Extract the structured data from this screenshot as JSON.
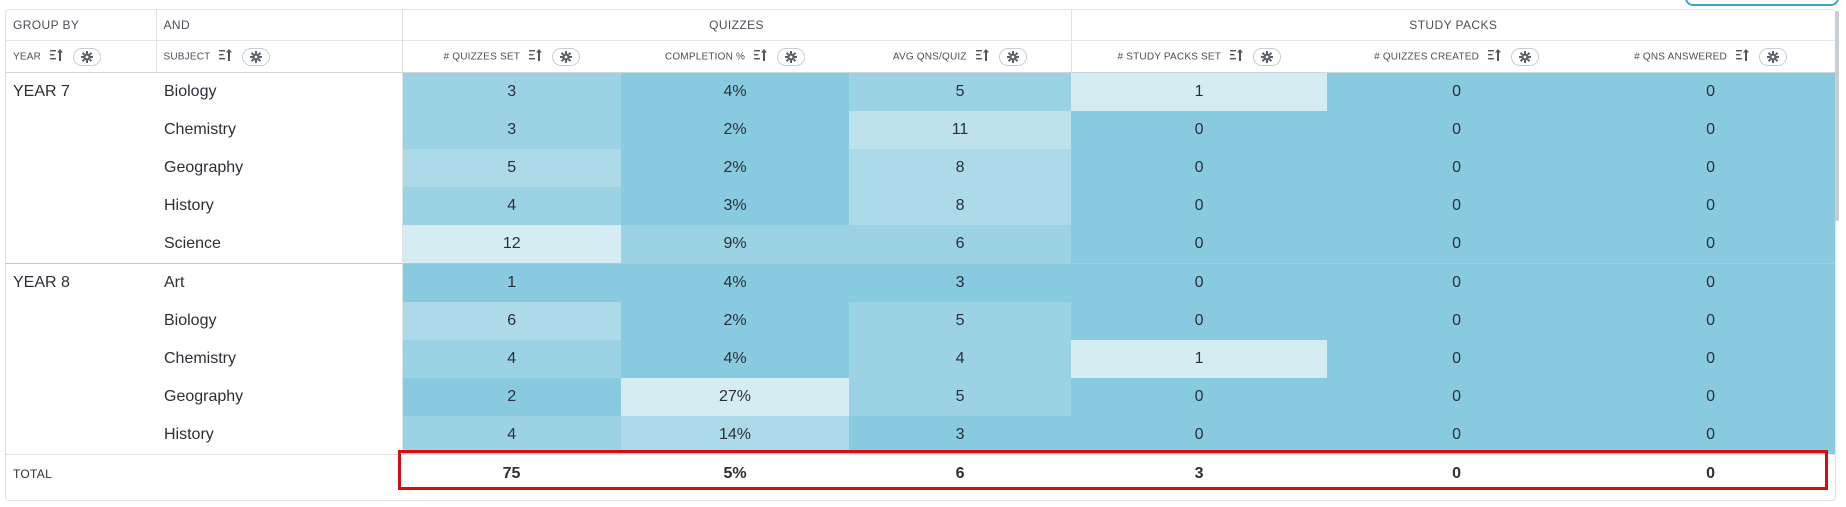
{
  "header": {
    "group_by": "GROUP BY",
    "and": "AND",
    "quizzes": "QUIZZES",
    "study_packs": "STUDY PACKS",
    "year": "YEAR",
    "subject": "SUBJECT",
    "quizzes_set": "# QUIZZES SET",
    "completion": "COMPLETION %",
    "avg_qns": "AVG QNS/QUIZ",
    "study_packs_set": "# STUDY PACKS SET",
    "quizzes_created": "# QUIZZES CREATED",
    "qns_answered": "# QNS ANSWERED"
  },
  "groups": [
    {
      "year": "YEAR 7",
      "rows": [
        {
          "subject": "Biology",
          "quizzes_set": "3",
          "completion": "4%",
          "avg_qns": "5",
          "study_packs_set": "1",
          "quizzes_created": "0",
          "qns_answered": "0"
        },
        {
          "subject": "Chemistry",
          "quizzes_set": "3",
          "completion": "2%",
          "avg_qns": "11",
          "study_packs_set": "0",
          "quizzes_created": "0",
          "qns_answered": "0"
        },
        {
          "subject": "Geography",
          "quizzes_set": "5",
          "completion": "2%",
          "avg_qns": "8",
          "study_packs_set": "0",
          "quizzes_created": "0",
          "qns_answered": "0"
        },
        {
          "subject": "History",
          "quizzes_set": "4",
          "completion": "3%",
          "avg_qns": "8",
          "study_packs_set": "0",
          "quizzes_created": "0",
          "qns_answered": "0"
        },
        {
          "subject": "Science",
          "quizzes_set": "12",
          "completion": "9%",
          "avg_qns": "6",
          "study_packs_set": "0",
          "quizzes_created": "0",
          "qns_answered": "0"
        }
      ]
    },
    {
      "year": "YEAR 8",
      "rows": [
        {
          "subject": "Art",
          "quizzes_set": "1",
          "completion": "4%",
          "avg_qns": "3",
          "study_packs_set": "0",
          "quizzes_created": "0",
          "qns_answered": "0"
        },
        {
          "subject": "Biology",
          "quizzes_set": "6",
          "completion": "2%",
          "avg_qns": "5",
          "study_packs_set": "0",
          "quizzes_created": "0",
          "qns_answered": "0"
        },
        {
          "subject": "Chemistry",
          "quizzes_set": "4",
          "completion": "4%",
          "avg_qns": "4",
          "study_packs_set": "1",
          "quizzes_created": "0",
          "qns_answered": "0"
        },
        {
          "subject": "Geography",
          "quizzes_set": "2",
          "completion": "27%",
          "avg_qns": "5",
          "study_packs_set": "0",
          "quizzes_created": "0",
          "qns_answered": "0"
        },
        {
          "subject": "History",
          "quizzes_set": "4",
          "completion": "14%",
          "avg_qns": "3",
          "study_packs_set": "0",
          "quizzes_created": "0",
          "qns_answered": "0"
        }
      ]
    }
  ],
  "total": {
    "label": "TOTAL",
    "quizzes_set": "75",
    "completion": "5%",
    "avg_qns": "6",
    "study_packs_set": "3",
    "quizzes_created": "0",
    "qns_answered": "0"
  },
  "colors": {
    "heat_lightest": "#d6ecf3",
    "heat_light": "#bde2ec",
    "heat_mid_light": "#acdae8",
    "heat_mid": "#9cd3e4",
    "heat_dark": "#88cbe0",
    "total_outline": "#d30f0f",
    "accent": "#38a7c9"
  },
  "icons": {
    "sort": "sort-icon",
    "settings": "gear-icon"
  }
}
